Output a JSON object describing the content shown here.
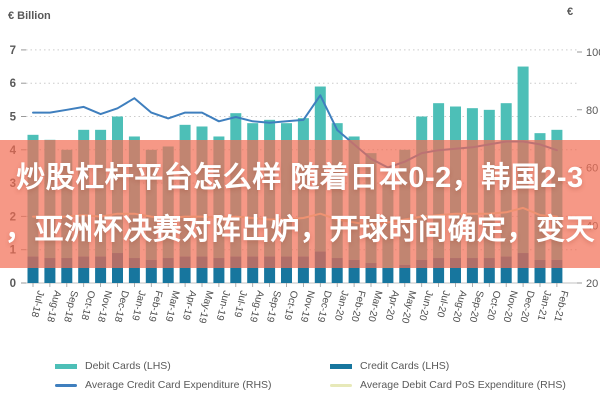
{
  "overlay": {
    "line1": "炒股杠杆平台怎么样 随着日本0-2，韩国2-3",
    "line2": "，亚洲杯决赛对阵出炉，开球时间确定，变天",
    "background": "rgba(242,108,82,0.70)",
    "text_color": "#ffffff"
  },
  "legend": {
    "items": [
      {
        "label": "Debit Cards (LHS)",
        "kind": "bar",
        "color": "#4DBFB7"
      },
      {
        "label": "Credit Cards (LHS)",
        "kind": "bar",
        "color": "#17769E"
      },
      {
        "label": "Average Credit Card Expenditure (RHS)",
        "kind": "line",
        "color": "#3F7FBE"
      },
      {
        "label": "Average Debit Card PoS Expenditure (RHS)",
        "kind": "line",
        "color": "#E7E9B9"
      }
    ]
  },
  "chart_data": {
    "type": "bar",
    "subtype": "stacked bars + two lines on secondary axis",
    "title": "",
    "y_left_title": "€ Billion",
    "y_right_title": "€",
    "y_left_range": [
      0,
      7
    ],
    "y_right_range": [
      20,
      100
    ],
    "y_left_ticks": [
      0,
      1,
      2,
      3,
      4,
      5,
      6,
      7
    ],
    "y_right_ticks": [
      20,
      40,
      60,
      80,
      100
    ],
    "grid": "dotted horizontal",
    "legend_position": "bottom",
    "categories": [
      "Jul-18",
      "Aug-18",
      "Sep-18",
      "Oct-18",
      "Nov-18",
      "Dec-18",
      "Jan-19",
      "Feb-19",
      "Mar-19",
      "Apr-19",
      "May-19",
      "Jun-19",
      "Jul-19",
      "Aug-19",
      "Sep-19",
      "Oct-19",
      "Nov-19",
      "Dec-19",
      "Jan-20",
      "Feb-20",
      "Mar-20",
      "Apr-20",
      "May-20",
      "Jun-20",
      "Jul-20",
      "Aug-20",
      "Sep-20",
      "Oct-20",
      "Nov-20",
      "Dec-20",
      "Jan-21",
      "Feb-21"
    ],
    "series": [
      {
        "name": "Credit Cards (LHS)",
        "type": "bar",
        "stack": "bottom",
        "axis": "left",
        "color": "#17769E",
        "values": [
          0.8,
          0.75,
          0.75,
          0.8,
          0.8,
          0.9,
          0.75,
          0.7,
          0.75,
          0.8,
          0.8,
          0.75,
          0.8,
          0.8,
          0.8,
          0.8,
          0.8,
          0.95,
          0.75,
          0.7,
          0.6,
          0.45,
          0.55,
          0.7,
          0.75,
          0.75,
          0.75,
          0.75,
          0.8,
          0.9,
          0.7,
          0.7
        ]
      },
      {
        "name": "Debit Cards (LHS)",
        "type": "bar",
        "stack": "top",
        "axis": "left",
        "color": "#4DBFB7",
        "values": [
          3.65,
          3.55,
          3.25,
          3.8,
          3.8,
          4.1,
          3.65,
          3.3,
          3.35,
          3.95,
          3.9,
          3.65,
          4.3,
          4.0,
          4.1,
          4.0,
          4.15,
          4.95,
          4.05,
          3.7,
          3.3,
          2.65,
          3.45,
          4.3,
          4.65,
          4.55,
          4.5,
          4.45,
          4.6,
          5.6,
          3.8,
          3.9
        ]
      },
      {
        "name": "Average Credit Card Expenditure (RHS)",
        "type": "line",
        "axis": "right",
        "color": "#3F7FBE",
        "values": [
          79,
          79,
          80,
          81,
          78.5,
          80.5,
          84,
          79,
          77,
          79,
          79,
          76,
          77.5,
          76,
          75.5,
          76,
          76.5,
          85,
          73,
          68,
          63,
          60,
          62,
          65,
          66,
          66.5,
          67,
          68,
          69,
          69,
          68,
          66
        ]
      },
      {
        "name": "Average Debit Card PoS Expenditure (RHS)",
        "type": "line",
        "axis": "right",
        "color": "#E7E9B9",
        "values": [
          43,
          43,
          43,
          43.5,
          43,
          44,
          44,
          43,
          42.5,
          43,
          43,
          42.5,
          43,
          42.5,
          42,
          42,
          42.5,
          44,
          42,
          41,
          40,
          41,
          42,
          43,
          43.5,
          44,
          44,
          44,
          44.5,
          46,
          43.5,
          43
        ]
      }
    ]
  }
}
